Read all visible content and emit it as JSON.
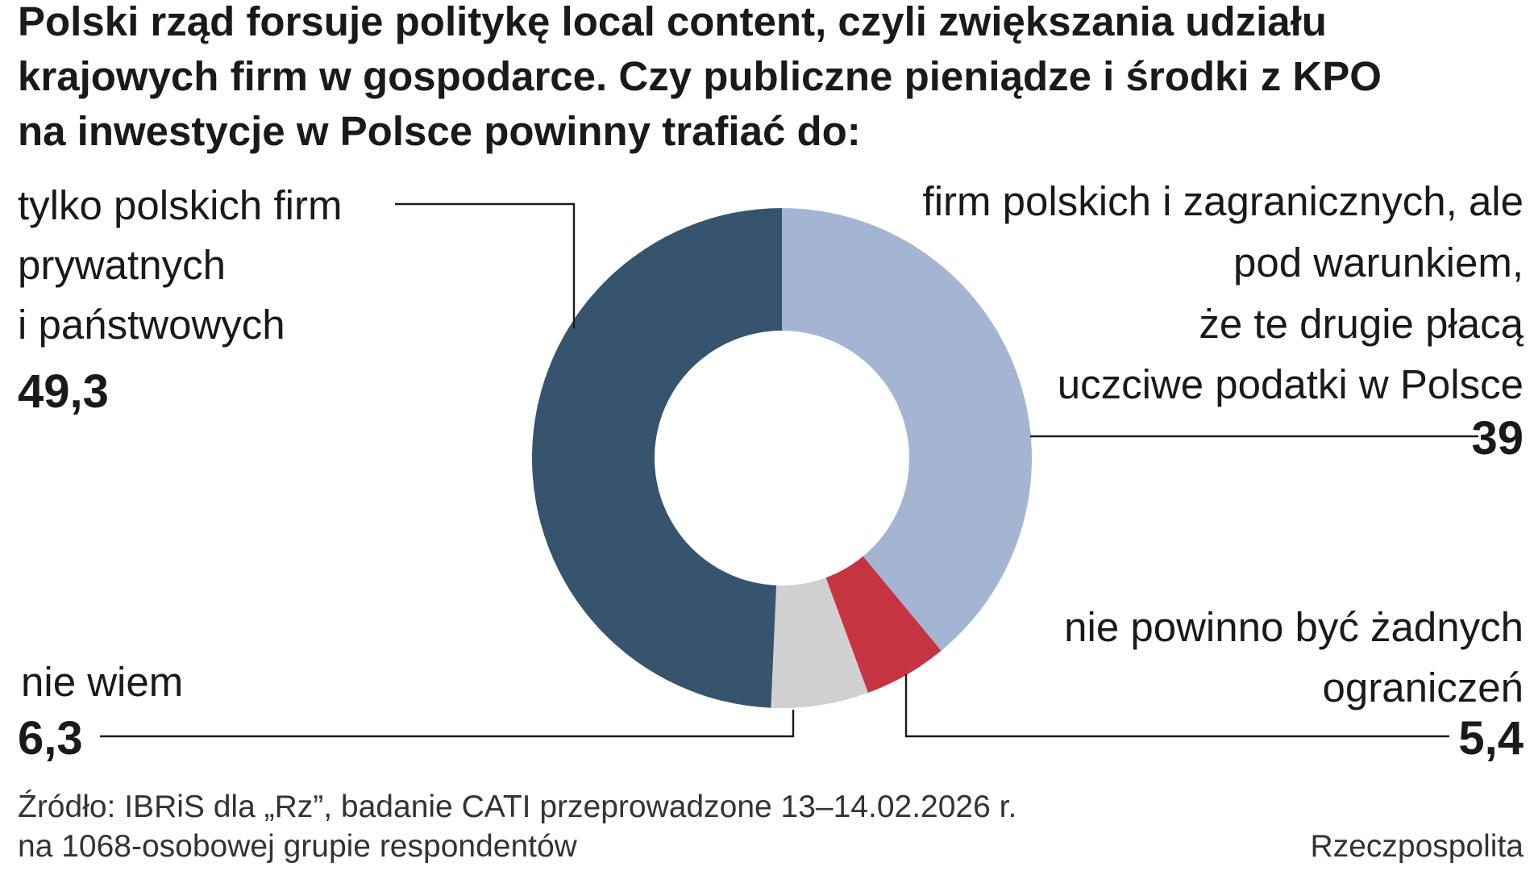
{
  "chart_data": {
    "type": "pie",
    "variant": "donut",
    "title": "Polski rząd forsuje politykę local content, czyli zwiększania udziału krajowych firm w gospodarce. Czy publiczne pieniądze i środki z KPO na inwestycje w Polsce powinny trafiać do:",
    "title_lines": [
      "Polski rząd forsuje politykę local content, czyli zwiększania udziału",
      "krajowych firm w gospodarce. Czy publiczne pieniądze i środki z KPO",
      "na inwestycje w Polsce powinny trafiać do:"
    ],
    "slices": [
      {
        "label": "firm polskich i zagranicznych, ale pod warunkiem, że te drugie płacą uczciwe podatki w Polsce",
        "label_lines": [
          "firm polskich i zagranicznych, ale",
          "pod warunkiem,",
          "że te drugie płacą",
          "uczciwe podatki w Polsce"
        ],
        "value": 39,
        "value_label": "39",
        "color": "#a3b5d3"
      },
      {
        "label": "nie powinno być żadnych ograniczeń",
        "label_lines": [
          "nie powinno być żadnych",
          "ograniczeń"
        ],
        "value": 5.4,
        "value_label": "5,4",
        "color": "#c63441"
      },
      {
        "label": "nie wiem",
        "label_lines": [
          "nie wiem"
        ],
        "value": 6.3,
        "value_label": "6,3",
        "color": "#d0d0d0"
      },
      {
        "label": "tylko polskich firm prywatnych i państwowych",
        "label_lines": [
          "tylko polskich firm",
          "prywatnych",
          "i państwowych"
        ],
        "value": 49.3,
        "value_label": "49,3",
        "color": "#36546e"
      }
    ],
    "start": "top",
    "direction": "clockwise",
    "legend": "none"
  },
  "footer": {
    "source_line1": "Źródło: IBRiS dla „Rz”, badanie CATI przeprowadzone 13–14.02.2026 r.",
    "source_line2": "na 1068-osobowej grupie respondentów",
    "publisher": "Rzeczpospolita"
  }
}
